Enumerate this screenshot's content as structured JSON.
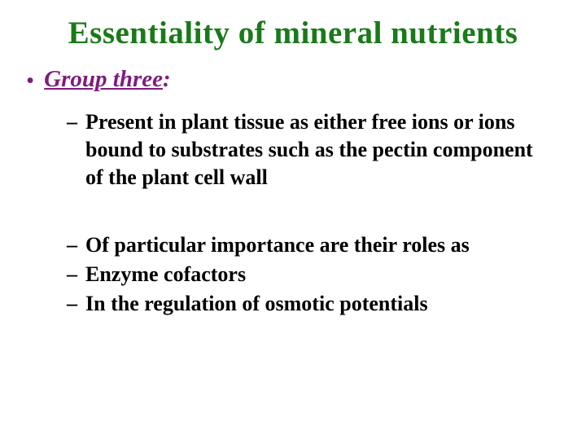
{
  "slide": {
    "title": "Essentiality of mineral nutrients",
    "title_color": "#1a7a1a",
    "title_fontsize": 39,
    "background_color": "#ffffff",
    "level1": {
      "label_underlined": "Group three",
      "label_rest": ":",
      "color": "#7d1d7d",
      "fontsize": 29
    },
    "level2": {
      "color": "#000000",
      "fontsize": 26,
      "items_block1": [
        "Present in plant tissue as either free ions or ions bound to substrates such as the pectin component of the plant cell wall"
      ],
      "items_block2": [
        "Of particular importance are their roles as",
        "Enzyme cofactors",
        "In the regulation of osmotic potentials"
      ]
    }
  }
}
